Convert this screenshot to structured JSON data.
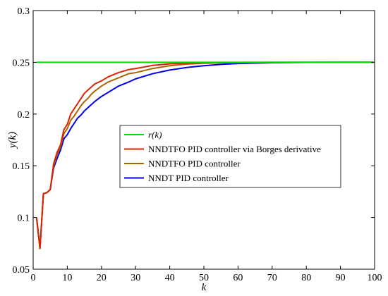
{
  "chart_data": {
    "type": "line",
    "title": "",
    "xlabel": "k",
    "ylabel": "y(k)",
    "xlim": [
      0,
      100
    ],
    "ylim": [
      0.05,
      0.3
    ],
    "xticks": [
      0,
      10,
      20,
      30,
      40,
      50,
      60,
      70,
      80,
      90,
      100
    ],
    "yticks": [
      0.05,
      0.1,
      0.15,
      0.2,
      0.25,
      0.3
    ],
    "xtick_labels": [
      "0",
      "10",
      "20",
      "30",
      "40",
      "50",
      "60",
      "70",
      "80",
      "90",
      "100"
    ],
    "ytick_labels": [
      "0.05",
      "0.1",
      "0.15",
      "0.2",
      "0.25",
      "0.3"
    ],
    "grid": false,
    "legend_position": "center",
    "series": [
      {
        "name": "r(k)",
        "name_italic": true,
        "color": "#00dd00",
        "x": [
          1,
          100
        ],
        "y": [
          0.25,
          0.25
        ]
      },
      {
        "name": "NNDTFO PID controller via Borges derivative",
        "color": "#dd2200",
        "x": [
          1,
          2,
          3,
          4,
          5,
          6,
          7,
          8,
          9,
          10,
          11,
          12,
          13,
          14,
          15,
          16,
          17,
          18,
          20,
          22,
          25,
          28,
          30,
          35,
          40,
          45,
          50,
          55,
          60,
          70,
          80,
          90,
          100
        ],
        "y": [
          0.1,
          0.07,
          0.123,
          0.124,
          0.127,
          0.152,
          0.163,
          0.17,
          0.185,
          0.19,
          0.2,
          0.205,
          0.21,
          0.215,
          0.22,
          0.223,
          0.226,
          0.229,
          0.232,
          0.236,
          0.24,
          0.243,
          0.244,
          0.247,
          0.2485,
          0.2492,
          0.2496,
          0.2498,
          0.2499,
          0.25,
          0.25,
          0.25,
          0.25
        ]
      },
      {
        "name": "NNDTFO PID controller",
        "color": "#aa6600",
        "x": [
          1,
          2,
          3,
          4,
          5,
          6,
          7,
          8,
          9,
          10,
          11,
          12,
          13,
          14,
          15,
          16,
          17,
          18,
          20,
          22,
          25,
          28,
          30,
          35,
          40,
          45,
          50,
          55,
          60,
          70,
          80,
          90,
          100
        ],
        "y": [
          0.1,
          0.07,
          0.123,
          0.124,
          0.127,
          0.15,
          0.161,
          0.168,
          0.181,
          0.186,
          0.194,
          0.198,
          0.203,
          0.208,
          0.212,
          0.215,
          0.219,
          0.222,
          0.227,
          0.231,
          0.235,
          0.239,
          0.24,
          0.244,
          0.2467,
          0.2482,
          0.2491,
          0.2495,
          0.2497,
          0.2499,
          0.25,
          0.25,
          0.25
        ]
      },
      {
        "name": "NNDT PID controller",
        "color": "#0000ee",
        "x": [
          1,
          2,
          3,
          4,
          5,
          6,
          7,
          8,
          9,
          10,
          11,
          12,
          13,
          14,
          15,
          16,
          17,
          18,
          20,
          22,
          25,
          28,
          30,
          35,
          40,
          45,
          50,
          55,
          60,
          70,
          80,
          90,
          100
        ],
        "y": [
          0.1,
          0.07,
          0.123,
          0.124,
          0.127,
          0.148,
          0.157,
          0.165,
          0.176,
          0.18,
          0.186,
          0.191,
          0.196,
          0.199,
          0.203,
          0.206,
          0.209,
          0.212,
          0.217,
          0.221,
          0.227,
          0.231,
          0.234,
          0.239,
          0.2425,
          0.245,
          0.2467,
          0.248,
          0.2488,
          0.2496,
          0.2499,
          0.25,
          0.25
        ]
      }
    ]
  }
}
